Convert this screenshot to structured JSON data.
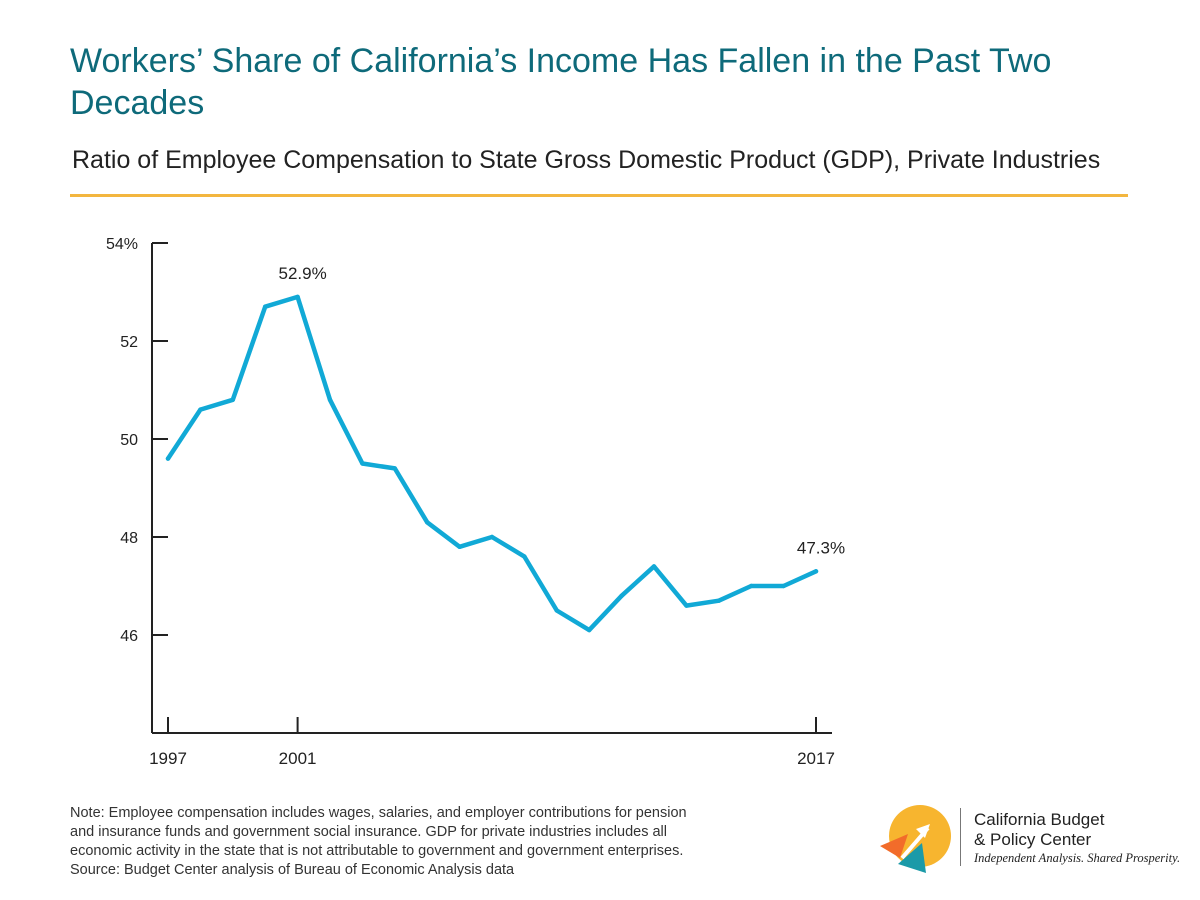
{
  "header": {
    "title": "Workers’ Share of California’s Income Has Fallen in the Past Two Decades",
    "subtitle": "Ratio of Employee Compensation to State Gross Domestic Product (GDP), Private Industries"
  },
  "chart_data": {
    "type": "line",
    "title": "Workers’ Share of California’s Income Has Fallen in the Past Two Decades",
    "subtitle": "Ratio of Employee Compensation to State Gross Domestic Product (GDP), Private Industries",
    "xlabel": "",
    "ylabel": "",
    "x": [
      1997,
      1998,
      1999,
      2000,
      2001,
      2002,
      2003,
      2004,
      2005,
      2006,
      2007,
      2008,
      2009,
      2010,
      2011,
      2012,
      2013,
      2014,
      2015,
      2016,
      2017
    ],
    "series": [
      {
        "values": [
          49.6,
          50.6,
          50.8,
          52.7,
          52.9,
          50.8,
          49.5,
          49.4,
          48.3,
          47.8,
          48.0,
          47.6,
          46.5,
          46.1,
          46.8,
          47.4,
          46.6,
          46.7,
          47.0,
          47.0,
          47.3
        ],
        "color": "#11a9d6"
      }
    ],
    "xlim": [
      1997,
      2017
    ],
    "ylim": [
      44,
      54
    ],
    "x_ticks": [
      1997,
      2001,
      2017
    ],
    "x_tick_labels": [
      "1997",
      "2001",
      "2017"
    ],
    "y_ticks": [
      54,
      52,
      50,
      48,
      46
    ],
    "y_tick_labels": [
      "54%",
      "52",
      "50",
      "48",
      "46"
    ],
    "annotations": [
      {
        "x": 2001,
        "y": 52.9,
        "text": "52.9%"
      },
      {
        "x": 2017,
        "y": 47.3,
        "text": "47.3%"
      }
    ],
    "grid": false,
    "legend": "none"
  },
  "footer": {
    "note_lines": [
      "Note: Employee compensation includes wages, salaries, and employer contributions for pension",
      "and insurance funds and government social insurance. GDP for private industries includes all",
      "economic activity in the state that is not attributable to government and government enterprises.",
      "Source: Budget Center analysis of Bureau of Economic Analysis data"
    ],
    "logo": {
      "name_line1": "California Budget",
      "name_line2": "& Policy Center",
      "tagline": "Independent Analysis. Shared Prosperity."
    }
  },
  "colors": {
    "title": "#0e6a7a",
    "rule": "#f3b63f",
    "line": "#11a9d6",
    "logo_yellow": "#f7b52f",
    "logo_orange": "#f26c2a",
    "logo_teal": "#1b9aa8"
  }
}
